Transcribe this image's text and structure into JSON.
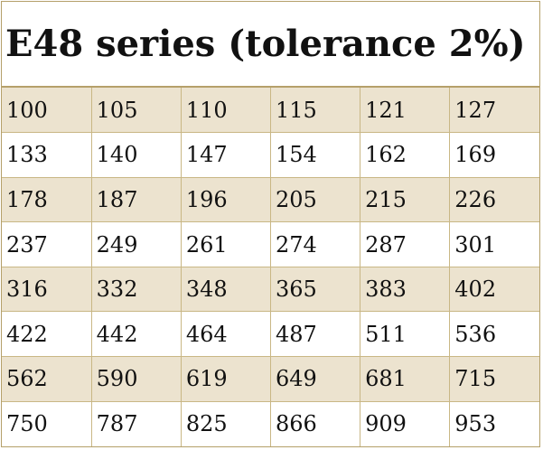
{
  "title": "E48 series (tolerance 2%)",
  "rows": [
    [
      "100",
      "105",
      "110",
      "115",
      "121",
      "127"
    ],
    [
      "133",
      "140",
      "147",
      "154",
      "162",
      "169"
    ],
    [
      "178",
      "187",
      "196",
      "205",
      "215",
      "226"
    ],
    [
      "237",
      "249",
      "261",
      "274",
      "287",
      "301"
    ],
    [
      "316",
      "332",
      "348",
      "365",
      "383",
      "402"
    ],
    [
      "422",
      "442",
      "464",
      "487",
      "511",
      "536"
    ],
    [
      "562",
      "590",
      "619",
      "649",
      "681",
      "715"
    ],
    [
      "750",
      "787",
      "825",
      "866",
      "909",
      "953"
    ]
  ],
  "colors": {
    "shaded_row": "#ece3cf",
    "border": "#b5a06a",
    "text": "#111111"
  }
}
